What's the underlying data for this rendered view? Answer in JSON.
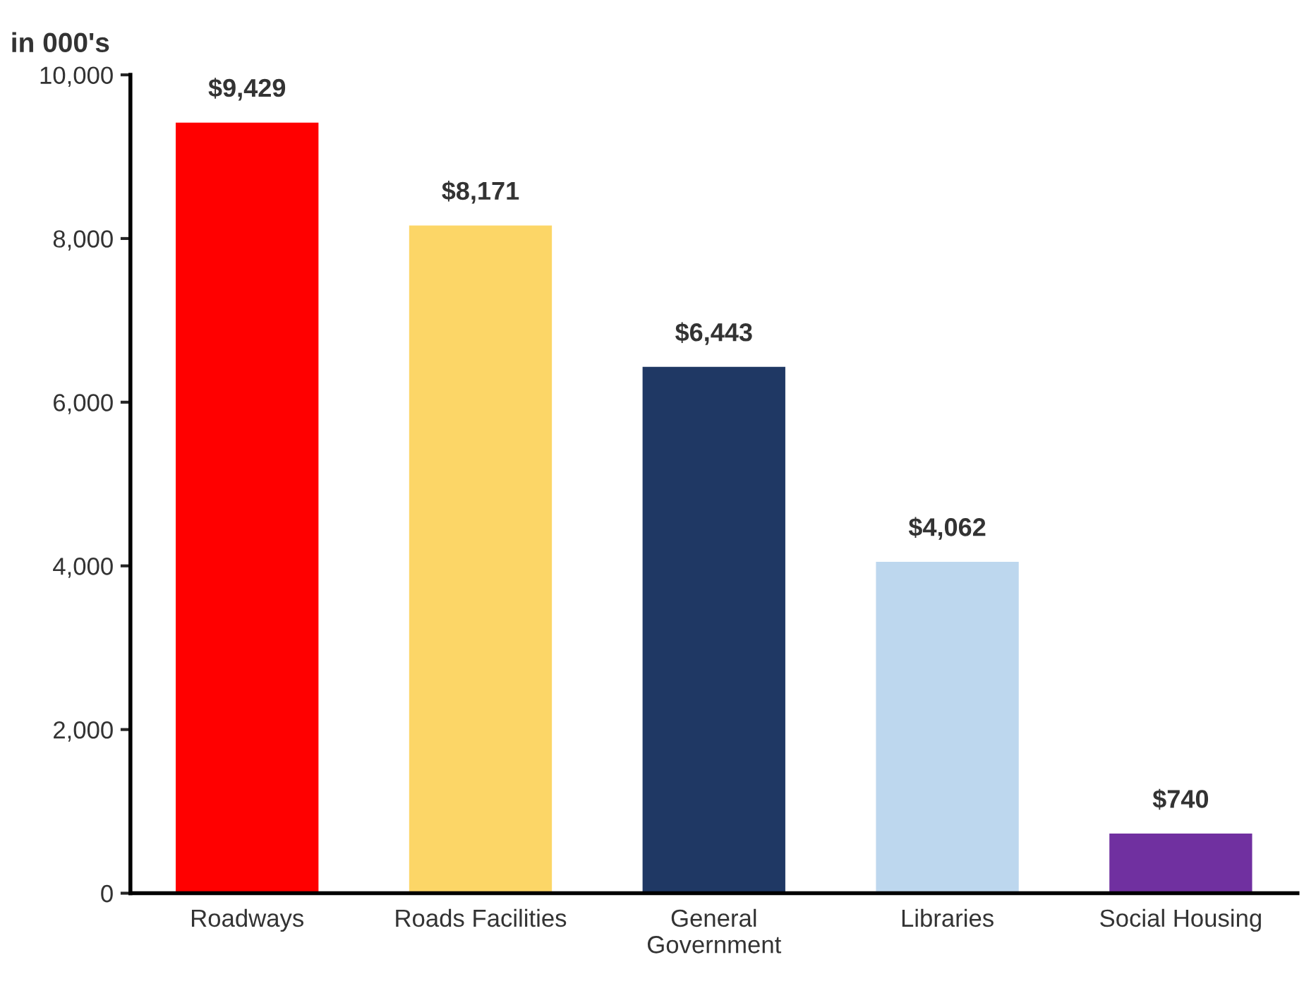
{
  "chart_data": {
    "type": "bar",
    "ylabel": "in 000's",
    "categories": [
      "Roadways",
      "Roads Facilities",
      "General\nGovernment",
      "Libraries",
      "Social Housing"
    ],
    "values": [
      9429,
      8171,
      6443,
      4062,
      740
    ],
    "colors": [
      "#ff0000",
      "#fcd667",
      "#1f3864",
      "#bdd7ee",
      "#7030a0"
    ],
    "value_labels": [
      "$9,429",
      "$8,171",
      "$6,443",
      "$4,062",
      "$740"
    ],
    "ylim": [
      0,
      10000
    ],
    "yticks": [
      {
        "value": 0,
        "label": "0"
      },
      {
        "value": 2000,
        "label": "2,000"
      },
      {
        "value": 4000,
        "label": "4,000"
      },
      {
        "value": 6000,
        "label": "6,000"
      },
      {
        "value": 8000,
        "label": "8,000"
      },
      {
        "value": 10000,
        "label": "10,000"
      }
    ],
    "grid": false,
    "legend": false
  }
}
